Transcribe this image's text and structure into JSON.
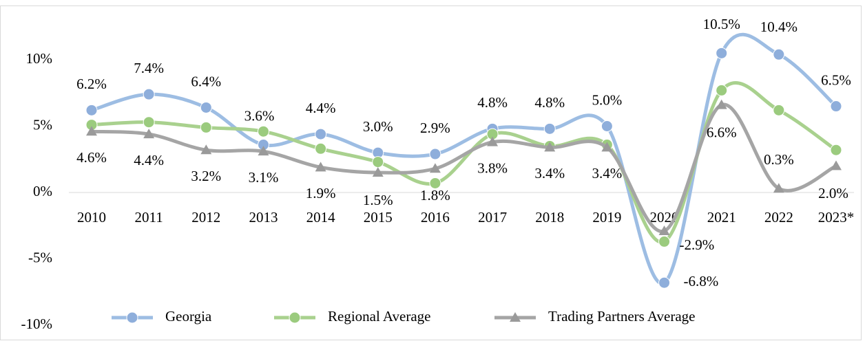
{
  "chart_data": {
    "type": "line",
    "categories": [
      "2010",
      "2011",
      "2012",
      "2013",
      "2014",
      "2015",
      "2016",
      "2017",
      "2018",
      "2019",
      "2020",
      "2021",
      "2022",
      "2023*"
    ],
    "ylim": [
      -10,
      12
    ],
    "yticks": [
      {
        "value": -10,
        "label": "-10%"
      },
      {
        "value": -5,
        "label": "-5%"
      },
      {
        "value": 0,
        "label": "0%"
      },
      {
        "value": 5,
        "label": "5%"
      },
      {
        "value": 10,
        "label": "10%"
      }
    ],
    "legend": "bottom",
    "series": [
      {
        "name": "Georgia",
        "color": "#9dbde3",
        "marker": "circle",
        "values": [
          6.2,
          7.4,
          6.4,
          3.6,
          4.4,
          3.0,
          2.9,
          4.8,
          4.8,
          5.0,
          -6.8,
          10.5,
          10.4,
          6.5
        ],
        "value_labels": [
          "6.2%",
          "7.4%",
          "6.4%",
          "3.6%",
          "4.4%",
          "3.0%",
          "2.9%",
          "4.8%",
          "4.8%",
          "5.0%",
          "-6.8%",
          "10.5%",
          "10.4%",
          "6.5%"
        ]
      },
      {
        "name": "Regional Average",
        "color": "#a9d18e",
        "marker": "circle",
        "values": [
          5.1,
          5.3,
          4.9,
          4.6,
          3.3,
          2.3,
          0.7,
          4.4,
          3.5,
          3.6,
          -3.7,
          7.7,
          6.2,
          3.2
        ]
      },
      {
        "name": "Trading Partners Average",
        "color": "#a5a5a5",
        "marker": "triangle",
        "values": [
          4.6,
          4.4,
          3.2,
          3.1,
          1.9,
          1.5,
          1.8,
          3.8,
          3.4,
          3.4,
          -2.9,
          6.6,
          0.3,
          2.0
        ],
        "value_labels": [
          "4.6%",
          "4.4%",
          "3.2%",
          "3.1%",
          "1.9%",
          "1.5%",
          "1.8%",
          "3.8%",
          "3.4%",
          "3.4%",
          "-2.9%",
          "6.6%",
          "0.3%",
          "2.0%"
        ]
      }
    ]
  }
}
